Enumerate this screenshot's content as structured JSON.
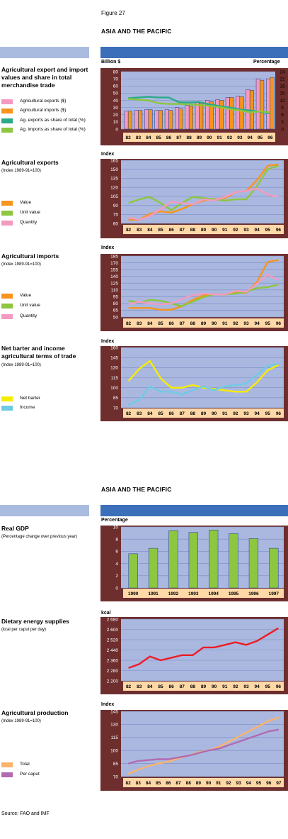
{
  "figure_label": "Figure 27",
  "headings": [
    "ASIA AND THE PACIFIC",
    "ASIA AND THE PACIFIC"
  ],
  "source": "Source: FAO and IMF",
  "colors": {
    "frame": "#6e2e2e",
    "plot_bg": "#aab8e0",
    "axis_band": "#ffd8a8",
    "bar_left": "#aabbe0",
    "bar_right": "#3c6fba"
  },
  "chart_data": [
    {
      "type": "bar",
      "title": "Agricultural export and import values and share in total merchandise trade",
      "subtitle": "",
      "ylabel": "Billion $",
      "y2label": "Percentage",
      "categories": [
        "82",
        "83",
        "84",
        "85",
        "86",
        "87",
        "88",
        "89",
        "90",
        "91",
        "92",
        "93",
        "94",
        "95",
        "96"
      ],
      "yticks": [
        "80",
        "70",
        "60",
        "50",
        "40",
        "30",
        "20",
        "10",
        "0"
      ],
      "y2ticks": [
        "24",
        "21",
        "18",
        "15",
        "12",
        "9",
        "6",
        "3",
        "0"
      ],
      "ylim": [
        0,
        80
      ],
      "y2lim": [
        0,
        24
      ],
      "series": [
        {
          "name": "Agricultural exports ($)",
          "kind": "bar",
          "color": "#f49ac1",
          "values": [
            25,
            26,
            27,
            26,
            27,
            30,
            33,
            37,
            40,
            41,
            44,
            46,
            55,
            70,
            70
          ]
        },
        {
          "name": "Agricultural imports ($)",
          "kind": "bar",
          "color": "#f7941d",
          "values": [
            25,
            26,
            27,
            26,
            26,
            28,
            32,
            36,
            38,
            40,
            44,
            45,
            54,
            68,
            72
          ]
        },
        {
          "name": "Ag. exports as share of total (%)",
          "kind": "line",
          "axis": "right",
          "color": "#2ba989",
          "values": [
            12.9,
            13.2,
            13.5,
            13.2,
            13.2,
            11.2,
            11.1,
            11.3,
            10.3,
            9.6,
            9.0,
            8.2,
            7.8,
            7.2,
            6.6
          ]
        },
        {
          "name": "Ag. imports as share of total (%)",
          "kind": "line",
          "axis": "right",
          "color": "#8dc63f",
          "values": [
            12.6,
            12.3,
            12.0,
            10.8,
            10.5,
            10.5,
            10.3,
            10.0,
            9.7,
            9.2,
            8.4,
            7.8,
            7.0,
            7.4,
            7.0
          ]
        }
      ]
    },
    {
      "type": "line",
      "title": "Agricultural exports",
      "subtitle": "(Index 1989-91=100)",
      "ylabel": "Index",
      "categories": [
        "82",
        "83",
        "84",
        "85",
        "86",
        "87",
        "88",
        "89",
        "90",
        "91",
        "92",
        "93",
        "94",
        "95",
        "96"
      ],
      "yticks": [
        "165",
        "150",
        "135",
        "120",
        "105",
        "90",
        "75",
        "60"
      ],
      "ylim": [
        60,
        165
      ],
      "series": [
        {
          "name": "Value",
          "color": "#f7941d",
          "values": [
            66,
            66,
            76,
            80,
            78,
            84,
            92,
            98,
            100,
            102,
            112,
            114,
            132,
            156,
            158
          ]
        },
        {
          "name": "Unit value",
          "color": "#8dc63f",
          "values": [
            94,
            100,
            104,
            94,
            82,
            94,
            104,
            102,
            100,
            98,
            100,
            100,
            122,
            150,
            156
          ]
        },
        {
          "name": "Quantity",
          "color": "#f49ac1",
          "values": [
            70,
            66,
            72,
            84,
            96,
            94,
            92,
            100,
            98,
            104,
            112,
            114,
            118,
            108,
            104
          ]
        }
      ]
    },
    {
      "type": "line",
      "title": "Agricultural imports",
      "subtitle": "(Index 1989-91=100)",
      "ylabel": "Index",
      "categories": [
        "82",
        "83",
        "84",
        "85",
        "86",
        "87",
        "88",
        "89",
        "90",
        "91",
        "92",
        "93",
        "94",
        "95",
        "96"
      ],
      "yticks": [
        "185",
        "170",
        "155",
        "140",
        "125",
        "110",
        "95",
        "80",
        "65",
        "50"
      ],
      "ylim": [
        50,
        185
      ],
      "series": [
        {
          "name": "Value",
          "color": "#f7941d",
          "values": [
            70,
            70,
            70,
            66,
            66,
            74,
            88,
            98,
            100,
            100,
            104,
            104,
            128,
            172,
            176
          ]
        },
        {
          "name": "Unit value",
          "color": "#8dc63f",
          "values": [
            86,
            82,
            88,
            86,
            80,
            74,
            84,
            94,
            100,
            100,
            102,
            106,
            114,
            116,
            122
          ]
        },
        {
          "name": "Quantity",
          "color": "#f49ac1",
          "values": [
            78,
            84,
            80,
            78,
            80,
            90,
            98,
            102,
            100,
            100,
            108,
            106,
            124,
            144,
            132
          ]
        }
      ]
    },
    {
      "type": "line",
      "title": "Net barter and income agricultural terms of trade",
      "subtitle": "(Index 1989-91=100)",
      "ylabel": "Index",
      "categories": [
        "82",
        "83",
        "84",
        "85",
        "86",
        "87",
        "88",
        "89",
        "90",
        "91",
        "92",
        "93",
        "94",
        "95",
        "96"
      ],
      "yticks": [
        "160",
        "145",
        "130",
        "115",
        "100",
        "85",
        "70"
      ],
      "ylim": [
        70,
        160
      ],
      "series": [
        {
          "name": "Net barter",
          "color": "#f7ec00",
          "values": [
            110,
            128,
            140,
            114,
            100,
            100,
            104,
            100,
            98,
            96,
            94,
            94,
            108,
            126,
            134
          ]
        },
        {
          "name": "Income",
          "color": "#6fcbe4",
          "values": [
            74,
            82,
            102,
            94,
            94,
            90,
            96,
            102,
            96,
            102,
            104,
            106,
            120,
            132,
            136
          ]
        }
      ]
    },
    {
      "type": "bar",
      "title": "Real GDP",
      "subtitle": "(Percentage change over previous year)",
      "ylabel": "Percentage",
      "categories": [
        "1990",
        "1991",
        "1992",
        "1993",
        "1994",
        "1995",
        "1996",
        "1997"
      ],
      "yticks": [
        "10",
        "8",
        "6",
        "4",
        "2",
        "0"
      ],
      "ylim": [
        0,
        10
      ],
      "series": [
        {
          "name": "",
          "color": "#8dc63f",
          "values": [
            5.6,
            6.5,
            9.4,
            9.1,
            9.5,
            8.9,
            8.1,
            6.5
          ]
        }
      ]
    },
    {
      "type": "line",
      "title": "Dietary energy supplies",
      "subtitle": "(kcal per caput per day)",
      "ylabel": "kcal",
      "categories": [
        "82",
        "83",
        "84",
        "85",
        "86",
        "87",
        "88",
        "89",
        "90",
        "91",
        "92",
        "93",
        "94",
        "95",
        "96"
      ],
      "yticks": [
        "2 680",
        "2 600",
        "2 520",
        "2 440",
        "2 360",
        "2 280",
        "2 200"
      ],
      "ylim": [
        2200,
        2680
      ],
      "series": [
        {
          "name": "",
          "color": "#ed1c24",
          "values": [
            2300,
            2330,
            2390,
            2360,
            2380,
            2400,
            2400,
            2460,
            2460,
            2480,
            2500,
            2480,
            2510,
            2560,
            2610
          ]
        }
      ]
    },
    {
      "type": "line",
      "title": "Agricultural production",
      "subtitle": "(Index 1989-91=100)",
      "ylabel": "Index",
      "categories": [
        "82",
        "83",
        "84",
        "85",
        "86",
        "87",
        "88",
        "89",
        "90",
        "91",
        "92",
        "93",
        "94",
        "95",
        "96",
        "97"
      ],
      "yticks": [
        "145",
        "130",
        "115",
        "100",
        "85",
        "70"
      ],
      "ylim": [
        70,
        145
      ],
      "series": [
        {
          "name": "Total",
          "color": "#fbb36b",
          "values": [
            73,
            78,
            82,
            85,
            87,
            91,
            94,
            98,
            100,
            104,
            110,
            116,
            122,
            128,
            134,
            138
          ]
        },
        {
          "name": "Per caput",
          "color": "#b26ab2",
          "values": [
            85,
            88,
            89,
            90,
            90,
            92,
            94,
            97,
            100,
            102,
            106,
            110,
            114,
            118,
            122,
            124
          ]
        }
      ]
    }
  ]
}
